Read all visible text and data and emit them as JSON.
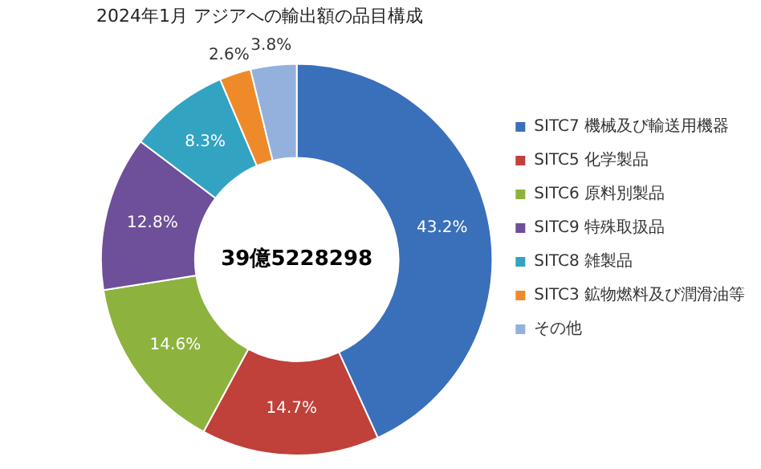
{
  "chart_data": {
    "type": "donut",
    "title": "2024年1月 アジアへの輸出額の品目構成",
    "categories": [
      "SITC7 機械及び輸送用機器",
      "SITC5 化学製品",
      "SITC6 原料別製品",
      "SITC9 特殊取扱品",
      "SITC8 雑製品",
      "SITC3 鉱物燃料及び潤滑油等",
      "その他"
    ],
    "values": [
      43.2,
      14.7,
      14.6,
      12.8,
      8.3,
      2.6,
      3.8
    ],
    "colors": [
      "#3a6fba",
      "#c0403a",
      "#8db33e",
      "#6e4f9a",
      "#33a3c2",
      "#ef8a2a",
      "#93b1dc"
    ],
    "value_labels": [
      "43.2%",
      "14.7%",
      "14.6%",
      "12.8%",
      "8.3%",
      "2.6%",
      "3.8%"
    ],
    "annotations": [
      "39億5228298"
    ],
    "legend": "right"
  }
}
